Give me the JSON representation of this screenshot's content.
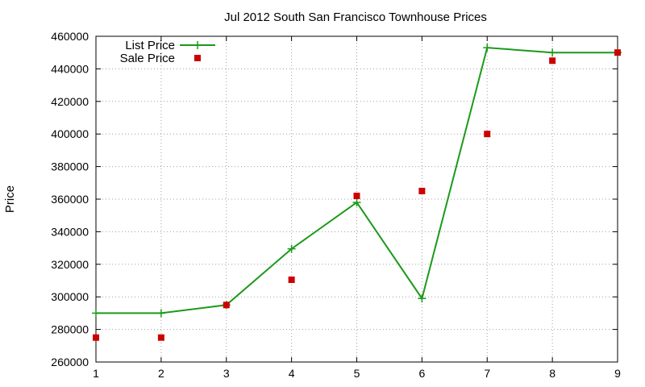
{
  "chart_data": {
    "type": "line",
    "title": "Jul 2012 South San Francisco Townhouse Prices",
    "xlabel": "",
    "ylabel": "Price",
    "xlim": [
      1,
      9
    ],
    "ylim": [
      260000,
      460000
    ],
    "x_ticks": [
      1,
      2,
      3,
      4,
      5,
      6,
      7,
      8,
      9
    ],
    "y_ticks": [
      260000,
      280000,
      300000,
      320000,
      340000,
      360000,
      380000,
      400000,
      420000,
      440000,
      460000
    ],
    "grid": true,
    "legend_position": "top-left",
    "series": [
      {
        "name": "List Price",
        "style": "line-with-plus-markers",
        "color": "#1a9a1a",
        "x": [
          1,
          2,
          3,
          4,
          5,
          6,
          7,
          8,
          9
        ],
        "values": [
          290000,
          290000,
          295000,
          329500,
          358000,
          299000,
          453000,
          450000,
          450000
        ]
      },
      {
        "name": "Sale Price",
        "style": "square-markers",
        "color": "#cc0000",
        "x": [
          1,
          2,
          3,
          4,
          5,
          6,
          7,
          8,
          9
        ],
        "values": [
          275000,
          275000,
          295000,
          310500,
          362000,
          365000,
          400000,
          445000,
          450000
        ]
      }
    ]
  }
}
